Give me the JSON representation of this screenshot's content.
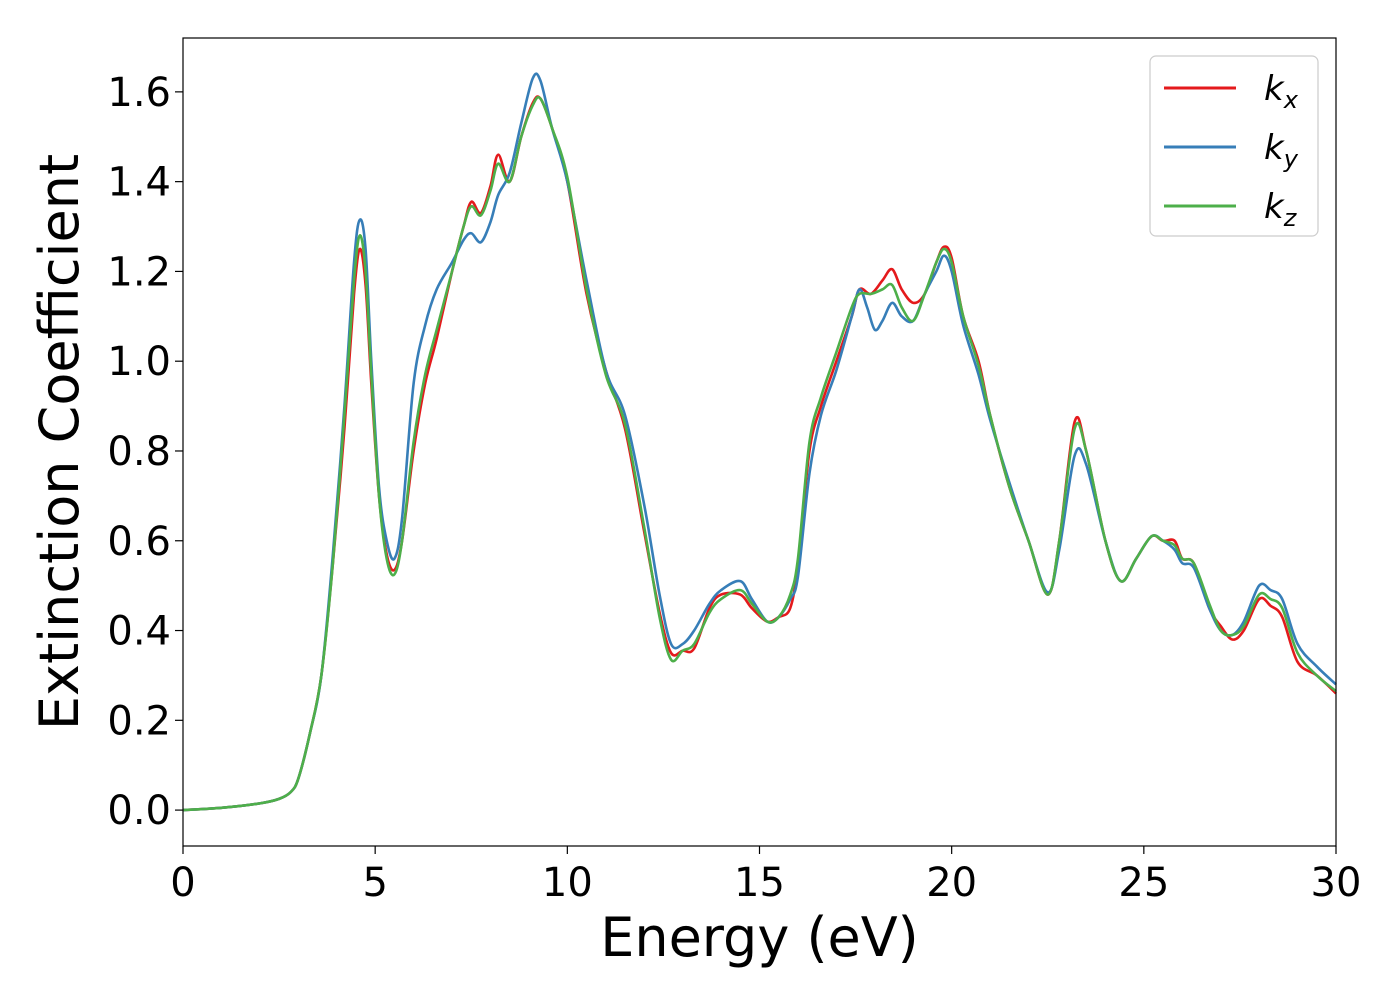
{
  "chart_data": {
    "type": "line",
    "title": "",
    "xlabel": "Energy (eV)",
    "ylabel": "Extinction Coefficient",
    "xlim": [
      0,
      30
    ],
    "ylim": [
      -0.08,
      1.72
    ],
    "xticks": [
      0,
      5,
      10,
      15,
      20,
      25,
      30
    ],
    "xtick_labels": [
      "0",
      "5",
      "10",
      "15",
      "20",
      "25",
      "30"
    ],
    "yticks": [
      0.0,
      0.2,
      0.4,
      0.6,
      0.8,
      1.0,
      1.2,
      1.4,
      1.6
    ],
    "ytick_labels": [
      "0.0",
      "0.2",
      "0.4",
      "0.6",
      "0.8",
      "1.0",
      "1.2",
      "1.4",
      "1.6"
    ],
    "grid": false,
    "legend_position": "top-right",
    "series": [
      {
        "name": "k",
        "subscript": "x",
        "color": "#e41a1c",
        "points": [
          [
            0,
            0.0
          ],
          [
            1,
            0.005
          ],
          [
            2,
            0.015
          ],
          [
            2.5,
            0.025
          ],
          [
            2.8,
            0.04
          ],
          [
            3.0,
            0.07
          ],
          [
            3.3,
            0.17
          ],
          [
            3.6,
            0.3
          ],
          [
            3.9,
            0.55
          ],
          [
            4.2,
            0.85
          ],
          [
            4.45,
            1.15
          ],
          [
            4.6,
            1.25
          ],
          [
            4.75,
            1.17
          ],
          [
            4.9,
            0.95
          ],
          [
            5.1,
            0.7
          ],
          [
            5.3,
            0.57
          ],
          [
            5.5,
            0.535
          ],
          [
            5.7,
            0.6
          ],
          [
            6.0,
            0.8
          ],
          [
            6.3,
            0.95
          ],
          [
            6.6,
            1.05
          ],
          [
            7.0,
            1.2
          ],
          [
            7.3,
            1.3
          ],
          [
            7.5,
            1.355
          ],
          [
            7.75,
            1.33
          ],
          [
            8.0,
            1.39
          ],
          [
            8.2,
            1.46
          ],
          [
            8.5,
            1.4
          ],
          [
            8.8,
            1.5
          ],
          [
            9.1,
            1.575
          ],
          [
            9.3,
            1.585
          ],
          [
            9.6,
            1.52
          ],
          [
            10.0,
            1.4
          ],
          [
            10.5,
            1.15
          ],
          [
            11.0,
            0.98
          ],
          [
            11.5,
            0.85
          ],
          [
            12.0,
            0.62
          ],
          [
            12.4,
            0.44
          ],
          [
            12.7,
            0.35
          ],
          [
            13.0,
            0.355
          ],
          [
            13.3,
            0.36
          ],
          [
            13.7,
            0.45
          ],
          [
            14.0,
            0.48
          ],
          [
            14.5,
            0.48
          ],
          [
            14.8,
            0.45
          ],
          [
            15.2,
            0.42
          ],
          [
            15.5,
            0.43
          ],
          [
            15.8,
            0.45
          ],
          [
            16.0,
            0.55
          ],
          [
            16.3,
            0.8
          ],
          [
            16.6,
            0.9
          ],
          [
            17.0,
            1.0
          ],
          [
            17.4,
            1.1
          ],
          [
            17.6,
            1.16
          ],
          [
            17.9,
            1.15
          ],
          [
            18.2,
            1.18
          ],
          [
            18.45,
            1.205
          ],
          [
            18.7,
            1.16
          ],
          [
            19.0,
            1.13
          ],
          [
            19.3,
            1.15
          ],
          [
            19.6,
            1.22
          ],
          [
            19.8,
            1.255
          ],
          [
            20.0,
            1.23
          ],
          [
            20.3,
            1.1
          ],
          [
            20.7,
            1.0
          ],
          [
            21.0,
            0.88
          ],
          [
            21.5,
            0.72
          ],
          [
            22.0,
            0.6
          ],
          [
            22.5,
            0.48
          ],
          [
            22.8,
            0.6
          ],
          [
            23.2,
            0.865
          ],
          [
            23.5,
            0.8
          ],
          [
            24.0,
            0.6
          ],
          [
            24.4,
            0.51
          ],
          [
            24.8,
            0.56
          ],
          [
            25.2,
            0.61
          ],
          [
            25.5,
            0.6
          ],
          [
            25.8,
            0.6
          ],
          [
            26.0,
            0.56
          ],
          [
            26.3,
            0.55
          ],
          [
            26.7,
            0.45
          ],
          [
            27.0,
            0.41
          ],
          [
            27.3,
            0.38
          ],
          [
            27.6,
            0.4
          ],
          [
            28.0,
            0.47
          ],
          [
            28.3,
            0.455
          ],
          [
            28.6,
            0.43
          ],
          [
            29.0,
            0.33
          ],
          [
            29.5,
            0.3
          ],
          [
            30.0,
            0.26
          ]
        ]
      },
      {
        "name": "k",
        "subscript": "y",
        "color": "#377eb8",
        "points": [
          [
            0,
            0.0
          ],
          [
            1,
            0.005
          ],
          [
            2,
            0.015
          ],
          [
            2.5,
            0.025
          ],
          [
            2.8,
            0.04
          ],
          [
            3.0,
            0.07
          ],
          [
            3.3,
            0.17
          ],
          [
            3.6,
            0.3
          ],
          [
            3.9,
            0.57
          ],
          [
            4.2,
            0.9
          ],
          [
            4.45,
            1.22
          ],
          [
            4.6,
            1.315
          ],
          [
            4.75,
            1.25
          ],
          [
            4.9,
            1.0
          ],
          [
            5.1,
            0.72
          ],
          [
            5.3,
            0.6
          ],
          [
            5.5,
            0.56
          ],
          [
            5.7,
            0.65
          ],
          [
            6.0,
            0.95
          ],
          [
            6.3,
            1.08
          ],
          [
            6.6,
            1.16
          ],
          [
            7.0,
            1.22
          ],
          [
            7.3,
            1.27
          ],
          [
            7.5,
            1.285
          ],
          [
            7.75,
            1.265
          ],
          [
            8.0,
            1.31
          ],
          [
            8.2,
            1.37
          ],
          [
            8.5,
            1.42
          ],
          [
            8.8,
            1.53
          ],
          [
            9.1,
            1.63
          ],
          [
            9.3,
            1.625
          ],
          [
            9.6,
            1.52
          ],
          [
            10.0,
            1.4
          ],
          [
            10.5,
            1.18
          ],
          [
            11.0,
            0.98
          ],
          [
            11.5,
            0.88
          ],
          [
            12.0,
            0.68
          ],
          [
            12.4,
            0.48
          ],
          [
            12.7,
            0.37
          ],
          [
            13.0,
            0.37
          ],
          [
            13.3,
            0.4
          ],
          [
            13.7,
            0.46
          ],
          [
            14.0,
            0.49
          ],
          [
            14.5,
            0.51
          ],
          [
            14.8,
            0.47
          ],
          [
            15.2,
            0.42
          ],
          [
            15.5,
            0.43
          ],
          [
            15.8,
            0.47
          ],
          [
            16.0,
            0.52
          ],
          [
            16.3,
            0.75
          ],
          [
            16.6,
            0.88
          ],
          [
            17.0,
            0.98
          ],
          [
            17.4,
            1.1
          ],
          [
            17.6,
            1.16
          ],
          [
            17.8,
            1.12
          ],
          [
            18.0,
            1.07
          ],
          [
            18.2,
            1.09
          ],
          [
            18.45,
            1.13
          ],
          [
            18.7,
            1.1
          ],
          [
            19.0,
            1.09
          ],
          [
            19.3,
            1.15
          ],
          [
            19.6,
            1.2
          ],
          [
            19.8,
            1.235
          ],
          [
            20.0,
            1.2
          ],
          [
            20.3,
            1.08
          ],
          [
            20.7,
            0.97
          ],
          [
            21.0,
            0.87
          ],
          [
            21.5,
            0.73
          ],
          [
            22.0,
            0.6
          ],
          [
            22.5,
            0.485
          ],
          [
            22.8,
            0.58
          ],
          [
            23.2,
            0.79
          ],
          [
            23.5,
            0.77
          ],
          [
            24.0,
            0.6
          ],
          [
            24.4,
            0.51
          ],
          [
            24.8,
            0.56
          ],
          [
            25.2,
            0.61
          ],
          [
            25.5,
            0.6
          ],
          [
            25.8,
            0.58
          ],
          [
            26.0,
            0.55
          ],
          [
            26.3,
            0.54
          ],
          [
            26.7,
            0.45
          ],
          [
            27.0,
            0.4
          ],
          [
            27.3,
            0.39
          ],
          [
            27.6,
            0.42
          ],
          [
            28.0,
            0.5
          ],
          [
            28.3,
            0.49
          ],
          [
            28.6,
            0.47
          ],
          [
            29.0,
            0.37
          ],
          [
            29.5,
            0.32
          ],
          [
            30.0,
            0.28
          ]
        ]
      },
      {
        "name": "k",
        "subscript": "z",
        "color": "#4daf4a",
        "points": [
          [
            0,
            0.0
          ],
          [
            1,
            0.005
          ],
          [
            2,
            0.015
          ],
          [
            2.5,
            0.025
          ],
          [
            2.8,
            0.04
          ],
          [
            3.0,
            0.07
          ],
          [
            3.3,
            0.17
          ],
          [
            3.6,
            0.3
          ],
          [
            3.9,
            0.55
          ],
          [
            4.2,
            0.88
          ],
          [
            4.45,
            1.18
          ],
          [
            4.6,
            1.28
          ],
          [
            4.75,
            1.2
          ],
          [
            4.9,
            0.97
          ],
          [
            5.1,
            0.7
          ],
          [
            5.3,
            0.56
          ],
          [
            5.5,
            0.525
          ],
          [
            5.7,
            0.6
          ],
          [
            6.0,
            0.82
          ],
          [
            6.3,
            0.97
          ],
          [
            6.6,
            1.07
          ],
          [
            7.0,
            1.2
          ],
          [
            7.3,
            1.3
          ],
          [
            7.5,
            1.345
          ],
          [
            7.75,
            1.325
          ],
          [
            8.0,
            1.38
          ],
          [
            8.2,
            1.44
          ],
          [
            8.5,
            1.4
          ],
          [
            8.8,
            1.5
          ],
          [
            9.1,
            1.57
          ],
          [
            9.3,
            1.585
          ],
          [
            9.6,
            1.52
          ],
          [
            10.0,
            1.41
          ],
          [
            10.5,
            1.16
          ],
          [
            11.0,
            0.97
          ],
          [
            11.5,
            0.86
          ],
          [
            12.0,
            0.63
          ],
          [
            12.4,
            0.43
          ],
          [
            12.7,
            0.335
          ],
          [
            13.0,
            0.355
          ],
          [
            13.3,
            0.37
          ],
          [
            13.7,
            0.44
          ],
          [
            14.0,
            0.47
          ],
          [
            14.5,
            0.49
          ],
          [
            14.8,
            0.46
          ],
          [
            15.2,
            0.42
          ],
          [
            15.5,
            0.43
          ],
          [
            15.8,
            0.48
          ],
          [
            16.0,
            0.56
          ],
          [
            16.3,
            0.82
          ],
          [
            16.6,
            0.92
          ],
          [
            17.0,
            1.02
          ],
          [
            17.4,
            1.12
          ],
          [
            17.6,
            1.15
          ],
          [
            17.9,
            1.15
          ],
          [
            18.2,
            1.16
          ],
          [
            18.45,
            1.17
          ],
          [
            18.7,
            1.12
          ],
          [
            19.0,
            1.09
          ],
          [
            19.3,
            1.15
          ],
          [
            19.6,
            1.22
          ],
          [
            19.8,
            1.25
          ],
          [
            20.0,
            1.22
          ],
          [
            20.3,
            1.1
          ],
          [
            20.7,
            0.99
          ],
          [
            21.0,
            0.88
          ],
          [
            21.5,
            0.72
          ],
          [
            22.0,
            0.6
          ],
          [
            22.5,
            0.48
          ],
          [
            22.8,
            0.6
          ],
          [
            23.2,
            0.85
          ],
          [
            23.5,
            0.8
          ],
          [
            24.0,
            0.6
          ],
          [
            24.4,
            0.51
          ],
          [
            24.8,
            0.56
          ],
          [
            25.2,
            0.61
          ],
          [
            25.5,
            0.6
          ],
          [
            25.8,
            0.59
          ],
          [
            26.0,
            0.56
          ],
          [
            26.3,
            0.55
          ],
          [
            26.7,
            0.46
          ],
          [
            27.0,
            0.4
          ],
          [
            27.3,
            0.39
          ],
          [
            27.6,
            0.41
          ],
          [
            28.0,
            0.48
          ],
          [
            28.3,
            0.47
          ],
          [
            28.6,
            0.45
          ],
          [
            29.0,
            0.35
          ],
          [
            29.5,
            0.3
          ],
          [
            30.0,
            0.265
          ]
        ]
      }
    ]
  }
}
